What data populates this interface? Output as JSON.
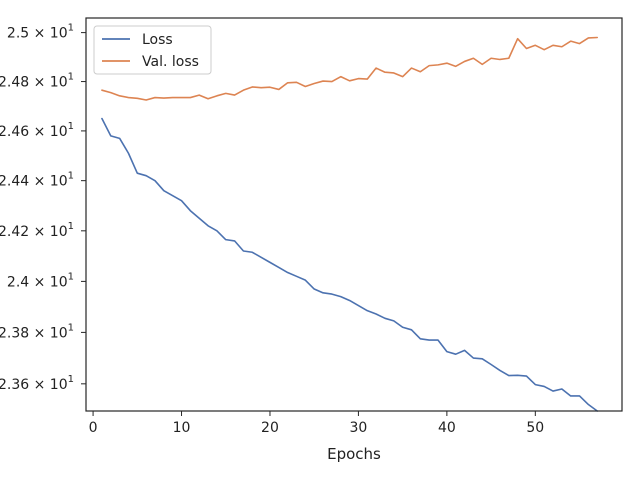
{
  "chart_data": {
    "type": "line",
    "xlabel": "Epochs",
    "ylabel": "",
    "title": "",
    "xlim": [
      -0.8,
      59.8
    ],
    "ylim": [
      23.495,
      25.06
    ],
    "yscale": "log",
    "grid": false,
    "legend_position": "top-left",
    "x_ticks": [
      0,
      10,
      20,
      30,
      40,
      50
    ],
    "x_tick_labels": [
      "0",
      "10",
      "20",
      "30",
      "40",
      "50"
    ],
    "y_ticks": [
      23.6,
      23.8,
      24.0,
      24.2,
      24.4,
      24.6,
      24.8,
      25.0
    ],
    "y_tick_labels": [
      {
        "base": "2.36 × 10",
        "exp": "1"
      },
      {
        "base": "2.38 × 10",
        "exp": "1"
      },
      {
        "base": "2.4 × 10",
        "exp": "1"
      },
      {
        "base": "2.42 × 10",
        "exp": "1"
      },
      {
        "base": "2.44 × 10",
        "exp": "1"
      },
      {
        "base": "2.46 × 10",
        "exp": "1"
      },
      {
        "base": "2.48 × 10",
        "exp": "1"
      },
      {
        "base": "2.5 × 10",
        "exp": "1"
      }
    ],
    "x": [
      1,
      2,
      3,
      4,
      5,
      6,
      7,
      8,
      9,
      10,
      11,
      12,
      13,
      14,
      15,
      16,
      17,
      18,
      19,
      20,
      21,
      22,
      23,
      24,
      25,
      26,
      27,
      28,
      29,
      30,
      31,
      32,
      33,
      34,
      35,
      36,
      37,
      38,
      39,
      40,
      41,
      42,
      43,
      44,
      45,
      46,
      47,
      48,
      49,
      50,
      51,
      52,
      53,
      54,
      55,
      56,
      57
    ],
    "series": [
      {
        "name": "Loss",
        "color": "#4c72b0",
        "values": [
          24.65,
          24.58,
          24.57,
          24.51,
          24.43,
          24.42,
          24.4,
          24.36,
          24.34,
          24.32,
          24.28,
          24.25,
          24.22,
          24.2,
          24.165,
          24.16,
          24.12,
          24.115,
          24.095,
          24.075,
          24.055,
          24.035,
          24.02,
          24.005,
          23.97,
          23.955,
          23.95,
          23.94,
          23.925,
          23.905,
          23.885,
          23.872,
          23.855,
          23.845,
          23.82,
          23.81,
          23.775,
          23.77,
          23.77,
          23.725,
          23.715,
          23.73,
          23.7,
          23.697,
          23.675,
          23.652,
          23.632,
          23.633,
          23.63,
          23.597,
          23.59,
          23.572,
          23.58,
          23.553,
          23.553,
          23.52,
          23.495
        ]
      },
      {
        "name": "Val. loss",
        "color": "#dd8452",
        "values": [
          24.765,
          24.755,
          24.742,
          24.735,
          24.732,
          24.725,
          24.735,
          24.733,
          24.735,
          24.735,
          24.735,
          24.745,
          24.73,
          24.742,
          24.752,
          24.745,
          24.765,
          24.778,
          24.775,
          24.777,
          24.768,
          24.795,
          24.797,
          24.78,
          24.792,
          24.802,
          24.8,
          24.82,
          24.803,
          24.812,
          24.81,
          24.855,
          24.838,
          24.835,
          24.82,
          24.855,
          24.84,
          24.865,
          24.868,
          24.875,
          24.862,
          24.882,
          24.895,
          24.87,
          24.895,
          24.89,
          24.895,
          24.975,
          24.935,
          24.948,
          24.93,
          24.948,
          24.942,
          24.965,
          24.955,
          24.978,
          24.98
        ]
      }
    ]
  }
}
